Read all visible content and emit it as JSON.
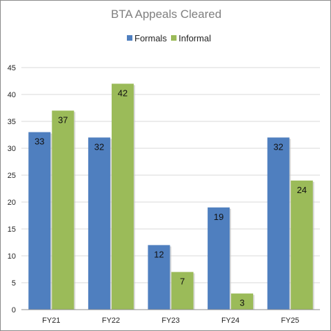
{
  "chart_data": {
    "type": "bar",
    "title": "BTA Appeals Cleared",
    "categories": [
      "FY21",
      "FY22",
      "FY23",
      "FY24",
      "FY25"
    ],
    "series": [
      {
        "name": "Formals",
        "values": [
          33,
          32,
          12,
          19,
          32
        ],
        "color": "#4f7fbf"
      },
      {
        "name": "Informal",
        "values": [
          37,
          42,
          7,
          3,
          24
        ],
        "color": "#9bbb59"
      }
    ],
    "ylim": [
      0,
      45
    ],
    "yticks": [
      0,
      5,
      10,
      15,
      20,
      25,
      30,
      35,
      40,
      45
    ],
    "grid": true,
    "legend": "top-center",
    "data_labels": true,
    "grid_color": "#d9d9d9",
    "axis_color": "#8c8c8c"
  }
}
